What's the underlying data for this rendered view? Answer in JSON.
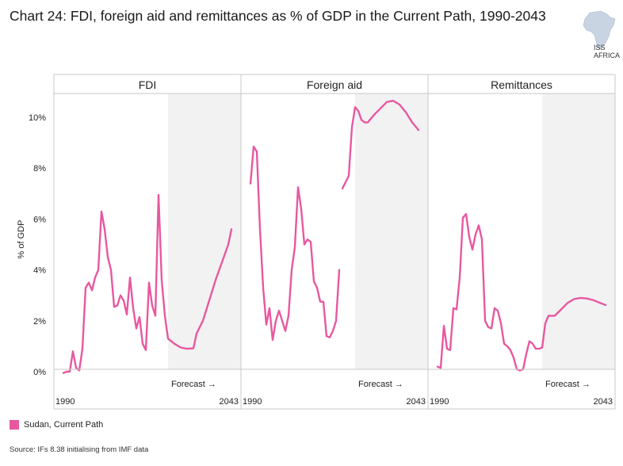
{
  "title": "Chart 24: FDI, foreign aid and remittances as % of GDP in the Current Path, 1990-2043",
  "logo": {
    "text": "ISS AFRICA"
  },
  "source": "Source: IFs 8.38 initialising from IMF data",
  "legend": {
    "label": "Sudan, Current Path",
    "color": "#e8589f"
  },
  "colors": {
    "line": "#e8589f",
    "forecast_shade": "#f2f2f2"
  },
  "chart_data": {
    "type": "line",
    "ylabel": "% of GDP",
    "ylim": [
      0,
      11
    ],
    "yticks": [
      {
        "value": 0,
        "label": "0%"
      },
      {
        "value": 2,
        "label": "2%"
      },
      {
        "value": 4,
        "label": "4%"
      },
      {
        "value": 6,
        "label": "6%"
      },
      {
        "value": 8,
        "label": "8%"
      },
      {
        "value": 10,
        "label": "10%"
      }
    ],
    "xlim": [
      1990,
      2043
    ],
    "forecast_start": 2023,
    "forecast_label": "Forecast →",
    "panels": [
      {
        "name": "FDI",
        "x_start_label": "1990",
        "x_end_label": "2043",
        "segments": [
          [
            [
              1990,
              -0.05
            ],
            [
              1991,
              0.0
            ],
            [
              1992,
              0.0
            ],
            [
              1993,
              0.8
            ],
            [
              1994,
              0.15
            ],
            [
              1995,
              0.05
            ],
            [
              1996,
              0.9
            ],
            [
              1997,
              3.3
            ],
            [
              1998,
              3.5
            ],
            [
              1999,
              3.2
            ],
            [
              2000,
              3.7
            ],
            [
              2001,
              4.0
            ],
            [
              2002,
              6.3
            ],
            [
              2003,
              5.6
            ],
            [
              2004,
              4.5
            ],
            [
              2005,
              4.0
            ],
            [
              2006,
              2.55
            ],
            [
              2007,
              2.6
            ],
            [
              2008,
              3.0
            ],
            [
              2009,
              2.8
            ],
            [
              2010,
              2.25
            ],
            [
              2011,
              3.7
            ],
            [
              2012,
              2.5
            ],
            [
              2013,
              1.7
            ],
            [
              2014,
              2.15
            ],
            [
              2015,
              1.1
            ],
            [
              2016,
              0.85
            ],
            [
              2017,
              3.5
            ],
            [
              2018,
              2.6
            ],
            [
              2019,
              2.2
            ],
            [
              2020,
              6.95
            ],
            [
              2021,
              3.6
            ],
            [
              2022,
              2.2
            ],
            [
              2023,
              1.3
            ],
            [
              2025,
              1.1
            ],
            [
              2027,
              0.95
            ],
            [
              2029,
              0.9
            ],
            [
              2031,
              0.92
            ],
            [
              2032,
              1.5
            ],
            [
              2034,
              2.0
            ],
            [
              2036,
              2.8
            ],
            [
              2038,
              3.6
            ],
            [
              2040,
              4.3
            ],
            [
              2042,
              5.0
            ],
            [
              2043,
              5.6
            ]
          ]
        ]
      },
      {
        "name": "Foreign aid",
        "x_start_label": "1990",
        "x_end_label": "2043",
        "segments": [
          [
            [
              1990,
              7.4
            ],
            [
              1991,
              8.85
            ],
            [
              1992,
              8.65
            ],
            [
              1993,
              5.6
            ],
            [
              1994,
              3.3
            ],
            [
              1995,
              1.85
            ],
            [
              1996,
              2.5
            ],
            [
              1997,
              1.25
            ],
            [
              1998,
              2.0
            ],
            [
              1999,
              2.4
            ],
            [
              2000,
              2.0
            ],
            [
              2001,
              1.6
            ],
            [
              2002,
              2.2
            ],
            [
              2003,
              4.0
            ],
            [
              2004,
              4.9
            ],
            [
              2005,
              7.25
            ],
            [
              2006,
              6.4
            ],
            [
              2007,
              5.0
            ],
            [
              2008,
              5.2
            ],
            [
              2009,
              5.1
            ],
            [
              2010,
              3.55
            ],
            [
              2011,
              3.3
            ],
            [
              2012,
              2.75
            ],
            [
              2013,
              2.75
            ],
            [
              2014,
              1.4
            ],
            [
              2015,
              1.35
            ],
            [
              2016,
              1.6
            ],
            [
              2017,
              2.0
            ],
            [
              2018,
              4.0
            ]
          ],
          [
            [
              2019,
              7.2
            ],
            [
              2021,
              7.7
            ],
            [
              2022,
              9.6
            ],
            [
              2023,
              10.4
            ],
            [
              2024,
              10.25
            ],
            [
              2025,
              9.9
            ],
            [
              2026,
              9.8
            ],
            [
              2027,
              9.8
            ],
            [
              2029,
              10.1
            ],
            [
              2031,
              10.35
            ],
            [
              2033,
              10.6
            ],
            [
              2035,
              10.65
            ],
            [
              2037,
              10.5
            ],
            [
              2039,
              10.2
            ],
            [
              2041,
              9.8
            ],
            [
              2043,
              9.5
            ]
          ]
        ]
      },
      {
        "name": "Remittances",
        "x_start_label": "1990",
        "x_end_label": "2043",
        "segments": [
          [
            [
              1990,
              0.2
            ],
            [
              1991,
              0.15
            ],
            [
              1992,
              1.8
            ],
            [
              1993,
              0.9
            ],
            [
              1994,
              0.85
            ],
            [
              1995,
              2.5
            ],
            [
              1996,
              2.45
            ],
            [
              1997,
              3.7
            ],
            [
              1998,
              6.05
            ],
            [
              1999,
              6.2
            ],
            [
              2000,
              5.3
            ],
            [
              2001,
              4.8
            ],
            [
              2002,
              5.4
            ],
            [
              2003,
              5.75
            ],
            [
              2004,
              5.2
            ],
            [
              2005,
              2.0
            ],
            [
              2006,
              1.75
            ],
            [
              2007,
              1.7
            ],
            [
              2008,
              2.5
            ],
            [
              2009,
              2.4
            ],
            [
              2010,
              1.9
            ],
            [
              2011,
              1.1
            ],
            [
              2012,
              1.0
            ],
            [
              2013,
              0.85
            ],
            [
              2014,
              0.55
            ],
            [
              2015,
              0.1
            ],
            [
              2016,
              0.05
            ],
            [
              2017,
              0.1
            ],
            [
              2018,
              0.7
            ],
            [
              2019,
              1.2
            ],
            [
              2020,
              1.1
            ],
            [
              2021,
              0.9
            ],
            [
              2022,
              0.9
            ],
            [
              2023,
              0.95
            ],
            [
              2024,
              1.9
            ],
            [
              2025,
              2.2
            ],
            [
              2027,
              2.2
            ],
            [
              2029,
              2.45
            ],
            [
              2031,
              2.7
            ],
            [
              2033,
              2.85
            ],
            [
              2035,
              2.9
            ],
            [
              2037,
              2.88
            ],
            [
              2039,
              2.82
            ],
            [
              2041,
              2.72
            ],
            [
              2043,
              2.62
            ]
          ]
        ]
      }
    ]
  }
}
